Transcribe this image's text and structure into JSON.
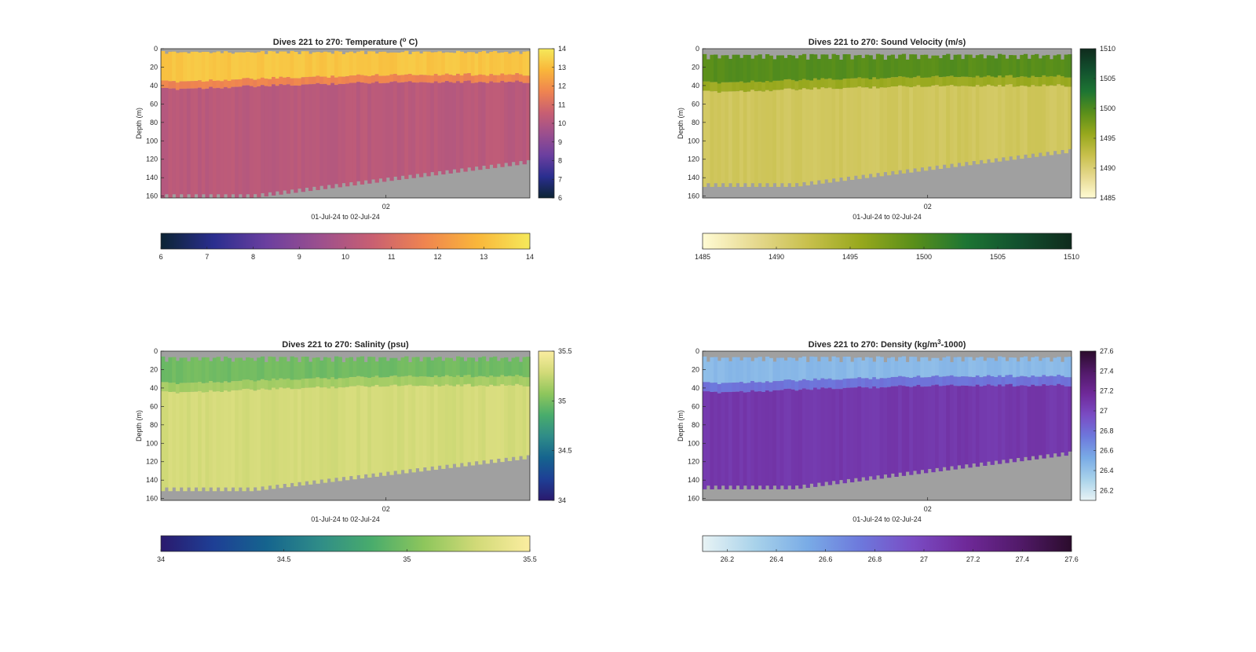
{
  "figure": {
    "background": "#ffffff",
    "nodata_color": "#a0a0a0"
  },
  "chart_data": [
    {
      "type": "heatmap",
      "title_main": "Dives 221 to 270: Temperature (",
      "title_sup": "o",
      "title_end": " C)",
      "ylabel": "Depth (m)",
      "xlabel": "01-Jul-24 to 02-Jul-24",
      "x_ticks": [
        "02"
      ],
      "y_ticks": [
        0,
        20,
        40,
        60,
        80,
        100,
        120,
        140,
        160
      ],
      "ylim": [
        0,
        162
      ],
      "colormap": "thermal",
      "colormap_stops": [
        "#0c2434",
        "#2a2e8f",
        "#6b3f9f",
        "#9b4f8e",
        "#c85f72",
        "#ef8450",
        "#f9b63a",
        "#f5e95a"
      ],
      "clim": [
        6,
        14
      ],
      "side_colorbar_ticks": [
        6,
        7,
        8,
        9,
        10,
        11,
        12,
        13,
        14
      ],
      "bottom_colorbar_ticks": [
        6,
        7,
        8,
        9,
        10,
        11,
        12,
        13,
        14
      ],
      "layers": {
        "surface_value": 13.2,
        "thermocline_start": 40,
        "thermocline_end": 32,
        "deep_value": 10.2,
        "mixed_band": 8,
        "bottom_start": 162,
        "bottom_end": 125,
        "surface_gap": 4
      }
    },
    {
      "type": "heatmap",
      "title_main": "Dives 221 to 270: Sound Velocity (m/s)",
      "title_sup": "",
      "title_end": "",
      "ylabel": "Depth (m)",
      "xlabel": "01-Jul-24 to 02-Jul-24",
      "x_ticks": [
        "02"
      ],
      "y_ticks": [
        0,
        20,
        40,
        60,
        80,
        100,
        120,
        140,
        160
      ],
      "ylim": [
        0,
        162
      ],
      "colormap": "speed",
      "colormap_stops": [
        "#fffbd4",
        "#e6d98f",
        "#c8c04c",
        "#97a81d",
        "#5a8f1a",
        "#1d7533",
        "#12502e",
        "#0f2b1d"
      ],
      "clim": [
        1485,
        1510
      ],
      "side_colorbar_ticks": [
        1485,
        1490,
        1495,
        1500,
        1505,
        1510
      ],
      "bottom_colorbar_ticks": [
        1485,
        1490,
        1495,
        1500,
        1505,
        1510
      ],
      "layers": {
        "surface_value": 1499.5,
        "thermocline_start": 42,
        "thermocline_end": 35,
        "deep_value": 1491.2,
        "mixed_band": 10,
        "bottom_start": 150,
        "bottom_end": 113,
        "surface_gap": 10
      }
    },
    {
      "type": "heatmap",
      "title_main": "Dives 221 to 270: Salinity (psu)",
      "title_sup": "",
      "title_end": "",
      "ylabel": "Depth (m)",
      "xlabel": "01-Jul-24 to 02-Jul-24",
      "x_ticks": [
        "02"
      ],
      "y_ticks": [
        0,
        20,
        40,
        60,
        80,
        100,
        120,
        140,
        160
      ],
      "ylim": [
        0,
        162
      ],
      "colormap": "haline",
      "colormap_stops": [
        "#2a1a6e",
        "#1e3f95",
        "#15648e",
        "#2f8c88",
        "#49ac6c",
        "#8ec65c",
        "#d2da78",
        "#fbeda0"
      ],
      "clim": [
        34,
        35.5
      ],
      "side_colorbar_ticks": [
        34,
        34.5,
        35,
        35.5
      ],
      "bottom_colorbar_ticks": [
        34,
        34.5,
        35,
        35.5
      ],
      "layers": {
        "surface_value": 34.98,
        "thermocline_start": 40,
        "thermocline_end": 32,
        "deep_value": 35.3,
        "mixed_band": 10,
        "bottom_start": 152,
        "bottom_end": 117,
        "surface_gap": 10
      }
    },
    {
      "type": "heatmap",
      "title_main": "Dives 221 to 270: Density (kg/m",
      "title_sup": "3",
      "title_end": "-1000)",
      "ylabel": "Depth (m)",
      "xlabel": "01-Jul-24 to 02-Jul-24",
      "x_ticks": [
        "02"
      ],
      "y_ticks": [
        0,
        20,
        40,
        60,
        80,
        100,
        120,
        140,
        160
      ],
      "ylim": [
        0,
        162
      ],
      "colormap": "dense",
      "colormap_stops": [
        "#e8f3f5",
        "#a8d2ea",
        "#79abe6",
        "#6d78dc",
        "#7a4cc4",
        "#6f2999",
        "#521a6a",
        "#2b0c2c"
      ],
      "clim": [
        26.1,
        27.6
      ],
      "side_colorbar_ticks": [
        26.2,
        26.4,
        26.6,
        26.8,
        27,
        27.2,
        27.4,
        27.6
      ],
      "bottom_colorbar_ticks": [
        26.2,
        26.4,
        26.6,
        26.8,
        27,
        27.2,
        27.4,
        27.6
      ],
      "layers": {
        "surface_value": 26.45,
        "thermocline_start": 40,
        "thermocline_end": 32,
        "deep_value": 27.08,
        "mixed_band": 10,
        "bottom_start": 150,
        "bottom_end": 113,
        "surface_gap": 10
      }
    }
  ]
}
